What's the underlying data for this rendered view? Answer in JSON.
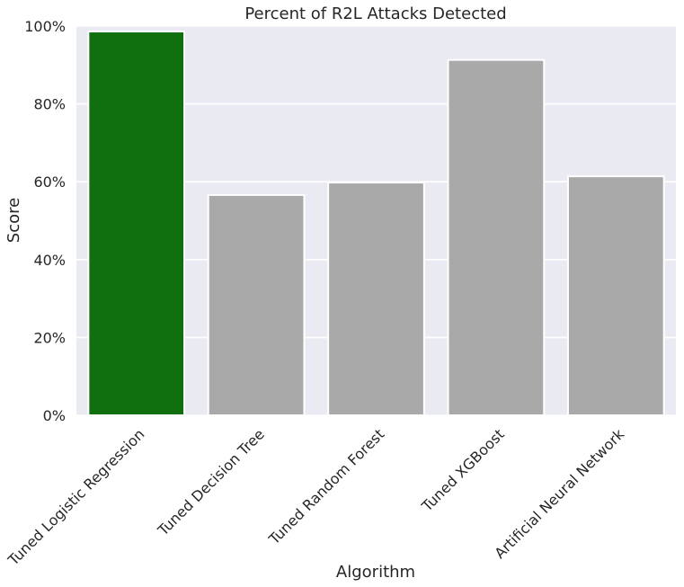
{
  "chart_data": {
    "type": "bar",
    "title": "Percent of R2L Attacks Detected",
    "xlabel": "Algorithm",
    "ylabel": "Score",
    "categories": [
      "Tuned Logistic Regression",
      "Tuned Decision Tree",
      "Tuned Random Forest",
      "Tuned XGBoost",
      "Artificial Neural Network"
    ],
    "values": [
      98.6,
      56.6,
      59.8,
      91.3,
      61.4
    ],
    "bar_colors": [
      "#107010",
      "#a9a9a9",
      "#a9a9a9",
      "#a9a9a9",
      "#a9a9a9"
    ],
    "ylim": [
      0,
      100
    ],
    "yticks": [
      0,
      20,
      40,
      60,
      80,
      100
    ],
    "ytick_labels": [
      "0%",
      "20%",
      "40%",
      "60%",
      "80%",
      "100%"
    ],
    "grid": true,
    "background": "#eaeaf2",
    "grid_color": "#ffffff"
  }
}
